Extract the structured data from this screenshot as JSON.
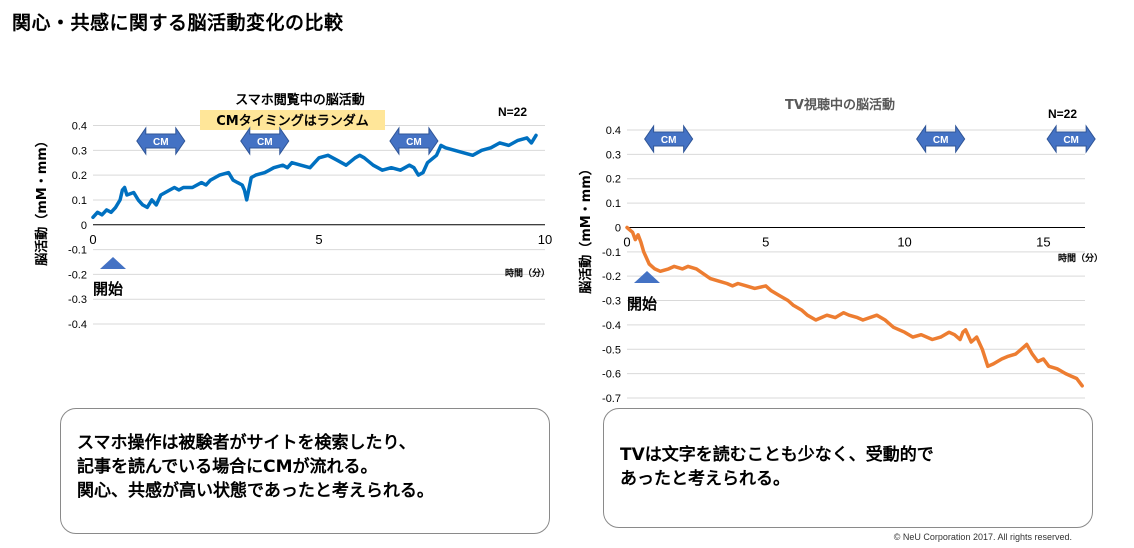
{
  "page_title": "関心・共感に関する脳活動変化の比較",
  "colors": {
    "smartphone_line": "#0070c0",
    "tv_line": "#ed7d31",
    "cm_arrow": "#4472c4",
    "highlight": "#ffe699"
  },
  "chart_data": [
    {
      "type": "line",
      "title": "スマホ閲覧中の脳活動",
      "subtitle": "CMタイミングはランダム",
      "n_label": "N=22",
      "xlabel": "時間（分）",
      "ylabel": "脳活動（mM・mm）",
      "xlim": [
        0,
        10
      ],
      "ylim": [
        -0.4,
        0.4
      ],
      "x_ticks": [
        0,
        5,
        10
      ],
      "y_ticks": [
        0.4,
        0.3,
        0.2,
        0.1,
        0,
        -0.1,
        -0.2,
        -0.3,
        -0.4
      ],
      "grid": true,
      "start_label": "開始",
      "cm_label": "CM",
      "cm_markers": [
        1.5,
        3.8,
        7.1
      ],
      "series": [
        {
          "x": [
            0,
            0.1,
            0.2,
            0.3,
            0.4,
            0.5,
            0.6,
            0.65,
            0.7,
            0.75,
            0.9,
            1.0,
            1.1,
            1.2,
            1.3,
            1.4,
            1.5,
            1.6,
            1.7,
            1.8,
            1.9,
            2.0,
            2.2,
            2.4,
            2.5,
            2.6,
            2.7,
            2.8,
            3.0,
            3.1,
            3.2,
            3.3,
            3.35,
            3.4,
            3.5,
            3.6,
            3.8,
            3.9,
            4.0,
            4.2,
            4.3,
            4.4,
            4.6,
            4.8,
            5.0,
            5.2,
            5.4,
            5.5,
            5.6,
            5.8,
            5.9,
            6.0,
            6.2,
            6.3,
            6.4,
            6.6,
            6.8,
            7.0,
            7.1,
            7.2,
            7.3,
            7.4,
            7.6,
            7.7,
            7.8,
            8.0,
            8.2,
            8.4,
            8.6,
            8.8,
            9.0,
            9.2,
            9.4,
            9.6,
            9.7,
            9.8
          ],
          "values": [
            0.03,
            0.05,
            0.04,
            0.06,
            0.05,
            0.07,
            0.1,
            0.14,
            0.15,
            0.12,
            0.13,
            0.1,
            0.08,
            0.07,
            0.1,
            0.08,
            0.12,
            0.13,
            0.14,
            0.15,
            0.14,
            0.15,
            0.15,
            0.17,
            0.16,
            0.18,
            0.19,
            0.2,
            0.21,
            0.18,
            0.17,
            0.16,
            0.14,
            0.1,
            0.19,
            0.2,
            0.21,
            0.22,
            0.23,
            0.24,
            0.23,
            0.25,
            0.24,
            0.23,
            0.27,
            0.28,
            0.26,
            0.25,
            0.24,
            0.27,
            0.28,
            0.27,
            0.24,
            0.23,
            0.22,
            0.23,
            0.22,
            0.24,
            0.23,
            0.2,
            0.21,
            0.25,
            0.28,
            0.32,
            0.31,
            0.3,
            0.29,
            0.28,
            0.3,
            0.31,
            0.33,
            0.32,
            0.34,
            0.35,
            0.33,
            0.36
          ]
        }
      ]
    },
    {
      "type": "line",
      "title": "TV視聴中の脳活動",
      "n_label": "N=22",
      "xlabel": "時間（分）",
      "ylabel": "脳活動（mM・mm）",
      "xlim": [
        0,
        16.5
      ],
      "ylim": [
        -0.7,
        0.4
      ],
      "x_ticks": [
        0,
        5,
        10,
        15
      ],
      "y_ticks": [
        0.4,
        0.3,
        0.2,
        0.1,
        0,
        -0.1,
        -0.2,
        -0.3,
        -0.4,
        -0.5,
        -0.6,
        -0.7
      ],
      "grid": true,
      "start_label": "開始",
      "cm_label": "CM",
      "cm_markers": [
        1.5,
        11.3,
        16.0
      ],
      "series": [
        {
          "x": [
            0,
            0.2,
            0.3,
            0.4,
            0.5,
            0.6,
            0.8,
            1.0,
            1.2,
            1.5,
            1.7,
            2.0,
            2.2,
            2.5,
            3.0,
            3.3,
            3.6,
            3.8,
            4.0,
            4.3,
            4.6,
            5.0,
            5.2,
            5.5,
            5.8,
            6.0,
            6.3,
            6.5,
            6.8,
            7.0,
            7.2,
            7.5,
            7.8,
            8.0,
            8.3,
            8.5,
            9.0,
            9.3,
            9.6,
            10.0,
            10.3,
            10.6,
            11.0,
            11.3,
            11.6,
            11.8,
            12.0,
            12.1,
            12.2,
            12.4,
            12.6,
            12.8,
            13.0,
            13.2,
            13.5,
            13.7,
            14.0,
            14.2,
            14.4,
            14.6,
            14.8,
            15.0,
            15.2,
            15.5,
            15.8,
            16.0,
            16.2,
            16.4
          ],
          "values": [
            0.0,
            -0.02,
            -0.05,
            -0.03,
            -0.06,
            -0.1,
            -0.15,
            -0.17,
            -0.18,
            -0.17,
            -0.16,
            -0.17,
            -0.16,
            -0.17,
            -0.21,
            -0.22,
            -0.23,
            -0.24,
            -0.23,
            -0.24,
            -0.25,
            -0.24,
            -0.26,
            -0.28,
            -0.3,
            -0.32,
            -0.34,
            -0.36,
            -0.38,
            -0.37,
            -0.36,
            -0.37,
            -0.35,
            -0.36,
            -0.37,
            -0.38,
            -0.36,
            -0.38,
            -0.41,
            -0.43,
            -0.45,
            -0.44,
            -0.46,
            -0.45,
            -0.43,
            -0.44,
            -0.46,
            -0.43,
            -0.42,
            -0.47,
            -0.45,
            -0.5,
            -0.57,
            -0.56,
            -0.54,
            -0.53,
            -0.52,
            -0.5,
            -0.48,
            -0.52,
            -0.55,
            -0.54,
            -0.57,
            -0.58,
            -0.6,
            -0.61,
            -0.62,
            -0.65
          ]
        }
      ]
    }
  ],
  "callouts": [
    {
      "text": "スマホ操作は被験者がサイトを検索したり、\n記事を読んでいる場合にCMが流れる。\n関心、共感が高い状態であったと考えられる。"
    },
    {
      "text": "TVは文字を読むことも少なく、受動的で\nあったと考えられる。"
    }
  ],
  "copyright": "© NeU Corporation 2017. All rights reserved."
}
